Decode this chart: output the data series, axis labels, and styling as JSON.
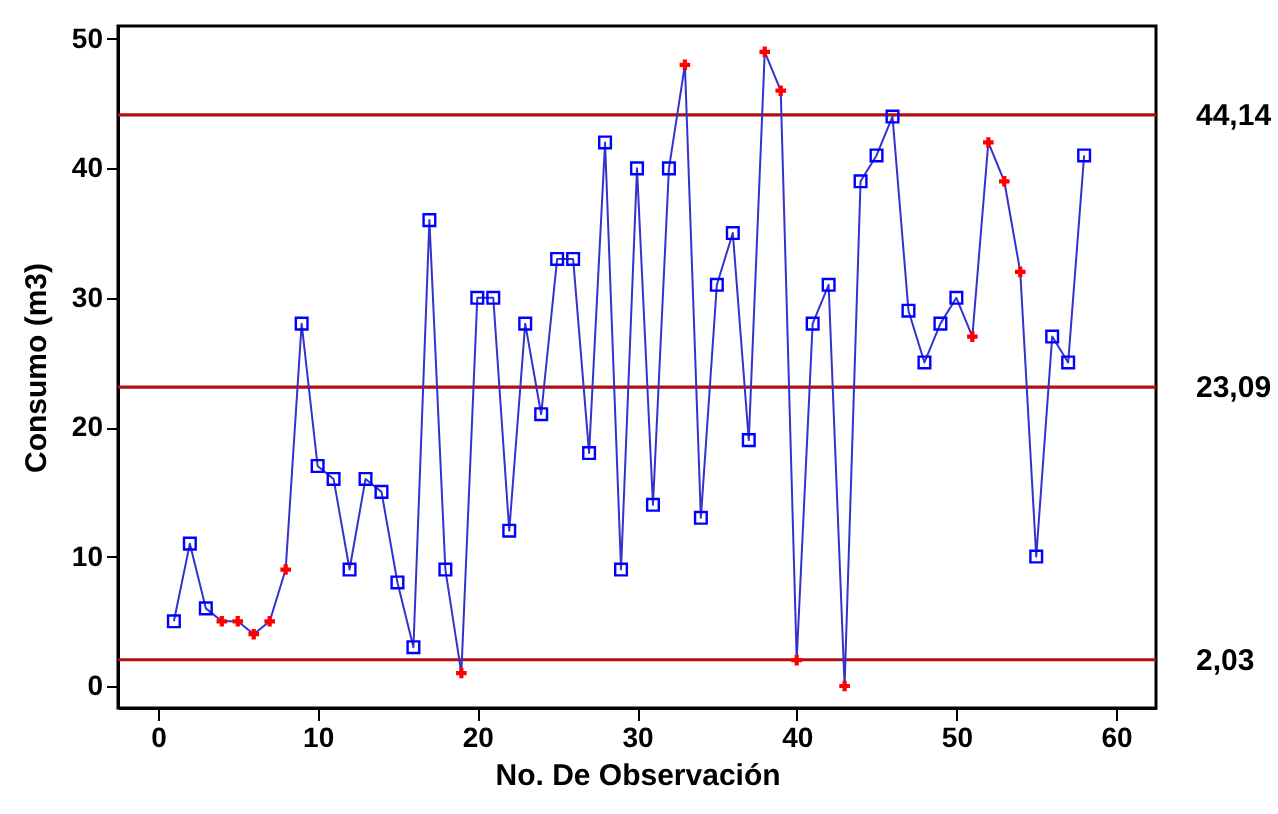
{
  "chart_data": {
    "type": "line",
    "xlabel": "No. De Observación",
    "ylabel": "Consumo (m3)",
    "x": [
      1,
      2,
      3,
      4,
      5,
      6,
      7,
      8,
      9,
      10,
      11,
      12,
      13,
      14,
      15,
      16,
      17,
      18,
      19,
      20,
      21,
      22,
      23,
      24,
      25,
      26,
      27,
      28,
      29,
      30,
      31,
      32,
      33,
      34,
      35,
      36,
      37,
      38,
      39,
      40,
      41,
      42,
      43,
      44,
      45,
      46,
      47,
      48,
      49,
      50,
      51,
      52,
      53,
      54,
      55,
      56,
      57,
      58
    ],
    "series": [
      {
        "marker": "none",
        "color": "#3333cc",
        "values": [
          5,
          11,
          6,
          5,
          5,
          4,
          5,
          9,
          28,
          17,
          16,
          9,
          16,
          15,
          8,
          3,
          36,
          9,
          1,
          30,
          30,
          12,
          28,
          21,
          33,
          33,
          18,
          42,
          9,
          40,
          14,
          40,
          48,
          13,
          31,
          35,
          19,
          49,
          46,
          2,
          28,
          31,
          0,
          39,
          41,
          44,
          29,
          25,
          28,
          30,
          27,
          42,
          39,
          32,
          10,
          27,
          25,
          41
        ]
      },
      {
        "type": "scatter",
        "marker": "square",
        "color": "#0000ff",
        "values": [
          5,
          11,
          6,
          null,
          null,
          null,
          null,
          null,
          28,
          17,
          16,
          9,
          16,
          15,
          8,
          3,
          36,
          9,
          null,
          30,
          30,
          12,
          28,
          21,
          33,
          33,
          18,
          42,
          9,
          40,
          14,
          40,
          null,
          13,
          31,
          35,
          19,
          null,
          null,
          null,
          28,
          31,
          null,
          39,
          41,
          44,
          29,
          25,
          28,
          30,
          null,
          null,
          null,
          null,
          10,
          27,
          25,
          41
        ]
      },
      {
        "type": "scatter",
        "marker": "cross",
        "color": "#ff0000",
        "values": [
          null,
          null,
          null,
          5,
          5,
          4,
          5,
          9,
          null,
          null,
          null,
          null,
          null,
          null,
          null,
          null,
          null,
          null,
          1,
          null,
          null,
          null,
          null,
          null,
          null,
          null,
          null,
          null,
          null,
          null,
          null,
          null,
          48,
          null,
          null,
          null,
          null,
          49,
          46,
          2,
          null,
          null,
          0,
          null,
          null,
          null,
          null,
          null,
          null,
          null,
          27,
          42,
          39,
          32,
          null,
          null,
          null,
          null
        ]
      }
    ],
    "ref_lines": [
      {
        "axis": "y",
        "value": 44.14,
        "label": "44,14",
        "color": "#b01010"
      },
      {
        "axis": "y",
        "value": 23.09,
        "label": "23,09",
        "color": "#b01010"
      },
      {
        "axis": "y",
        "value": 2.03,
        "label": "2,03",
        "color": "#b01010"
      }
    ],
    "xlim": [
      -2.5,
      62.5
    ],
    "ylim": [
      -1.7,
      51
    ],
    "xticks": [
      0,
      10,
      20,
      30,
      40,
      50,
      60
    ],
    "yticks": [
      0,
      10,
      20,
      30,
      40,
      50
    ],
    "grid": false
  }
}
